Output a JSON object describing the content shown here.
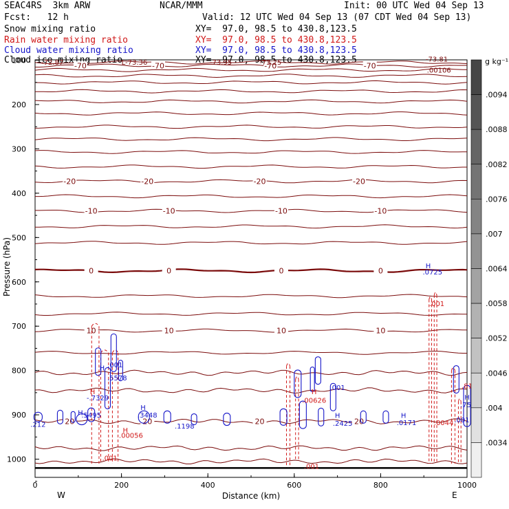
{
  "header": {
    "model": "SEAC4RS  3km ARW",
    "center": "NCAR/MMM",
    "init": "Init: 00 UTC Wed 04 Sep 13",
    "fcst": "Fcst:   12 h",
    "valid": "Valid: 12 UTC Wed 04 Sep 13 (07 CDT Wed 04 Sep 13)"
  },
  "legend": [
    {
      "label": "Snow mixing ratio",
      "xy": "XY=  97.0, 98.5 to 430.8,123.5",
      "color": "#000000"
    },
    {
      "label": "Rain water mixing ratio",
      "xy": "XY=  97.0, 98.5 to 430.8,123.5",
      "color": "#d01818"
    },
    {
      "label": "Cloud water mixing ratio",
      "xy": "XY=  97.0, 98.5 to 430.8,123.5",
      "color": "#1515c8"
    },
    {
      "label": "Cloud ice mixing ratio",
      "xy": "XY=  97.0, 98.5 to 430.8,123.5",
      "color": "#000000"
    }
  ],
  "colors": {
    "temperature": "#7a0a0a",
    "rain": "#d01818",
    "cloud_water": "#1515c8",
    "ground": "#000000"
  },
  "chart_data": {
    "type": "cross-section",
    "xlabel": "Distance (km)",
    "ylabel": "Pressure (hPa)",
    "xlim": [
      0,
      1000
    ],
    "ylim": [
      1050,
      100
    ],
    "xticks": [
      0,
      200,
      400,
      600,
      800,
      1000
    ],
    "yticks": [
      100,
      200,
      300,
      400,
      500,
      600,
      700,
      800,
      900,
      1000
    ],
    "x_end_labels": {
      "left": "W",
      "right": "E"
    },
    "colorbar": {
      "unit": "g kg⁻¹",
      "labels": [
        ".0094",
        ".0088",
        ".0082",
        ".0076",
        ".007",
        ".0064",
        ".0058",
        ".0052",
        ".0046",
        ".004",
        ".0034"
      ]
    },
    "temperature_isotherms": [
      {
        "p": 105,
        "label": ""
      },
      {
        "p": 112,
        "label": "-70"
      },
      {
        "p": 122,
        "label": ""
      },
      {
        "p": 135,
        "label": ""
      },
      {
        "p": 150,
        "label": ""
      },
      {
        "p": 170,
        "label": ""
      },
      {
        "p": 193,
        "label": ""
      },
      {
        "p": 220,
        "label": ""
      },
      {
        "p": 250,
        "label": ""
      },
      {
        "p": 278,
        "label": ""
      },
      {
        "p": 307,
        "label": ""
      },
      {
        "p": 340,
        "label": ""
      },
      {
        "p": 373,
        "label": "-20"
      },
      {
        "p": 407,
        "label": ""
      },
      {
        "p": 440,
        "label": "-10"
      },
      {
        "p": 475,
        "label": ""
      },
      {
        "p": 512,
        "label": ""
      },
      {
        "p": 575,
        "label": "0",
        "bold": true
      },
      {
        "p": 632,
        "label": ""
      },
      {
        "p": 672,
        "label": ""
      },
      {
        "p": 710,
        "label": "10"
      },
      {
        "p": 760,
        "label": ""
      },
      {
        "p": 805,
        "label": ""
      },
      {
        "p": 845,
        "label": ""
      },
      {
        "p": 915,
        "label": "20"
      },
      {
        "p": 975,
        "label": ""
      },
      {
        "p": 1005,
        "label": ""
      }
    ],
    "top_labels": [
      {
        "x": 40,
        "p": 110,
        "text": "-72.87"
      },
      {
        "x": 230,
        "p": 110,
        "text": "L-73.36"
      },
      {
        "x": 430,
        "p": 110,
        "text": "-73.95"
      },
      {
        "x": 545,
        "p": 110,
        "text": "-73.25"
      },
      {
        "x": 930,
        "p": 103,
        "text": "-73.81"
      },
      {
        "x": 935,
        "p": 128,
        "text": ".00106"
      }
    ],
    "annotations": [
      {
        "x": 7,
        "p": 927,
        "text": ".212",
        "color": "blue"
      },
      {
        "x": 105,
        "p": 901,
        "text": "H",
        "color": "blue"
      },
      {
        "x": 130,
        "p": 906,
        "text": ".5495",
        "color": "blue"
      },
      {
        "x": 145,
        "p": 867,
        "text": "-.7329",
        "color": "blue"
      },
      {
        "x": 133,
        "p": 853,
        "text": "H",
        "color": "red"
      },
      {
        "x": 190,
        "p": 822,
        "text": ".5578",
        "color": "blue"
      },
      {
        "x": 185,
        "p": 793,
        "text": ".001",
        "color": "blue"
      },
      {
        "x": 155,
        "p": 800,
        "text": "H",
        "color": "blue"
      },
      {
        "x": 250,
        "p": 889,
        "text": "H",
        "color": "blue"
      },
      {
        "x": 260,
        "p": 906,
        "text": ".3448",
        "color": "blue"
      },
      {
        "x": 209,
        "p": 940,
        "text": "H",
        "color": "red"
      },
      {
        "x": 222,
        "p": 952,
        "text": ".00056",
        "color": "red"
      },
      {
        "x": 173,
        "p": 1003,
        "text": ".001",
        "color": "red"
      },
      {
        "x": 346,
        "p": 931,
        "text": ".1198",
        "color": "blue"
      },
      {
        "x": 646,
        "p": 873,
        "text": ".00626",
        "color": "red"
      },
      {
        "x": 646,
        "p": 853,
        "text": "H",
        "color": "red"
      },
      {
        "x": 700,
        "p": 844,
        "text": ".001",
        "color": "blue"
      },
      {
        "x": 700,
        "p": 907,
        "text": "H",
        "color": "blue"
      },
      {
        "x": 712,
        "p": 925,
        "text": ".2425",
        "color": "blue"
      },
      {
        "x": 640,
        "p": 1022,
        "text": ".001",
        "color": "red"
      },
      {
        "x": 853,
        "p": 907,
        "text": "H",
        "color": "blue"
      },
      {
        "x": 860,
        "p": 923,
        "text": ".0171",
        "color": "blue"
      },
      {
        "x": 910,
        "p": 569,
        "text": "H",
        "color": "blue"
      },
      {
        "x": 920,
        "p": 583,
        "text": ".0725",
        "color": "blue"
      },
      {
        "x": 930,
        "p": 655,
        "text": ".001",
        "color": "red"
      },
      {
        "x": 946,
        "p": 923,
        "text": ".0044",
        "color": "red"
      },
      {
        "x": 988,
        "p": 917,
        "text": ".001",
        "color": "blue"
      },
      {
        "x": 1000,
        "p": 840,
        "text": ".81",
        "color": "red"
      },
      {
        "x": 1000,
        "p": 866,
        "text": "H",
        "color": "blue"
      },
      {
        "x": 1002,
        "p": 883,
        "text": ".753",
        "color": "blue"
      }
    ],
    "rain_columns": [
      {
        "x1": 131,
        "x2": 148,
        "ptop": 700,
        "pbot": 1010
      },
      {
        "x1": 152,
        "x2": 170,
        "ptop": 760,
        "pbot": 1010
      },
      {
        "x1": 179,
        "x2": 192,
        "ptop": 760,
        "pbot": 1010
      },
      {
        "x1": 582,
        "x2": 590,
        "ptop": 790,
        "pbot": 1020
      },
      {
        "x1": 603,
        "x2": 610,
        "ptop": 820,
        "pbot": 1000
      },
      {
        "x1": 912,
        "x2": 918,
        "ptop": 640,
        "pbot": 1010
      },
      {
        "x1": 924,
        "x2": 930,
        "ptop": 630,
        "pbot": 1010
      },
      {
        "x1": 964,
        "x2": 972,
        "ptop": 800,
        "pbot": 1010
      },
      {
        "x1": 980,
        "x2": 986,
        "ptop": 870,
        "pbot": 1010
      }
    ],
    "cloud_cells": [
      {
        "x": 7,
        "p": 905,
        "w": 12,
        "h": 14
      },
      {
        "x": 58,
        "p": 905,
        "w": 8,
        "h": 20
      },
      {
        "x": 88,
        "p": 905,
        "w": 6,
        "h": 16
      },
      {
        "x": 108,
        "p": 910,
        "w": 16,
        "h": 16
      },
      {
        "x": 130,
        "p": 900,
        "w": 10,
        "h": 20
      },
      {
        "x": 146,
        "p": 780,
        "w": 8,
        "h": 40
      },
      {
        "x": 168,
        "p": 840,
        "w": 8,
        "h": 60
      },
      {
        "x": 182,
        "p": 760,
        "w": 8,
        "h": 55
      },
      {
        "x": 198,
        "p": 800,
        "w": 6,
        "h": 30
      },
      {
        "x": 252,
        "p": 905,
        "w": 16,
        "h": 18
      },
      {
        "x": 306,
        "p": 905,
        "w": 10,
        "h": 18
      },
      {
        "x": 368,
        "p": 910,
        "w": 8,
        "h": 16
      },
      {
        "x": 444,
        "p": 910,
        "w": 10,
        "h": 18
      },
      {
        "x": 575,
        "p": 905,
        "w": 10,
        "h": 24
      },
      {
        "x": 608,
        "p": 830,
        "w": 10,
        "h": 40
      },
      {
        "x": 620,
        "p": 900,
        "w": 10,
        "h": 40
      },
      {
        "x": 642,
        "p": 820,
        "w": 6,
        "h": 36
      },
      {
        "x": 655,
        "p": 800,
        "w": 8,
        "h": 40
      },
      {
        "x": 662,
        "p": 905,
        "w": 8,
        "h": 26
      },
      {
        "x": 690,
        "p": 860,
        "w": 8,
        "h": 40
      },
      {
        "x": 760,
        "p": 905,
        "w": 8,
        "h": 18
      },
      {
        "x": 812,
        "p": 905,
        "w": 8,
        "h": 18
      },
      {
        "x": 975,
        "p": 820,
        "w": 8,
        "h": 40
      },
      {
        "x": 1000,
        "p": 880,
        "w": 10,
        "h": 60
      }
    ]
  }
}
